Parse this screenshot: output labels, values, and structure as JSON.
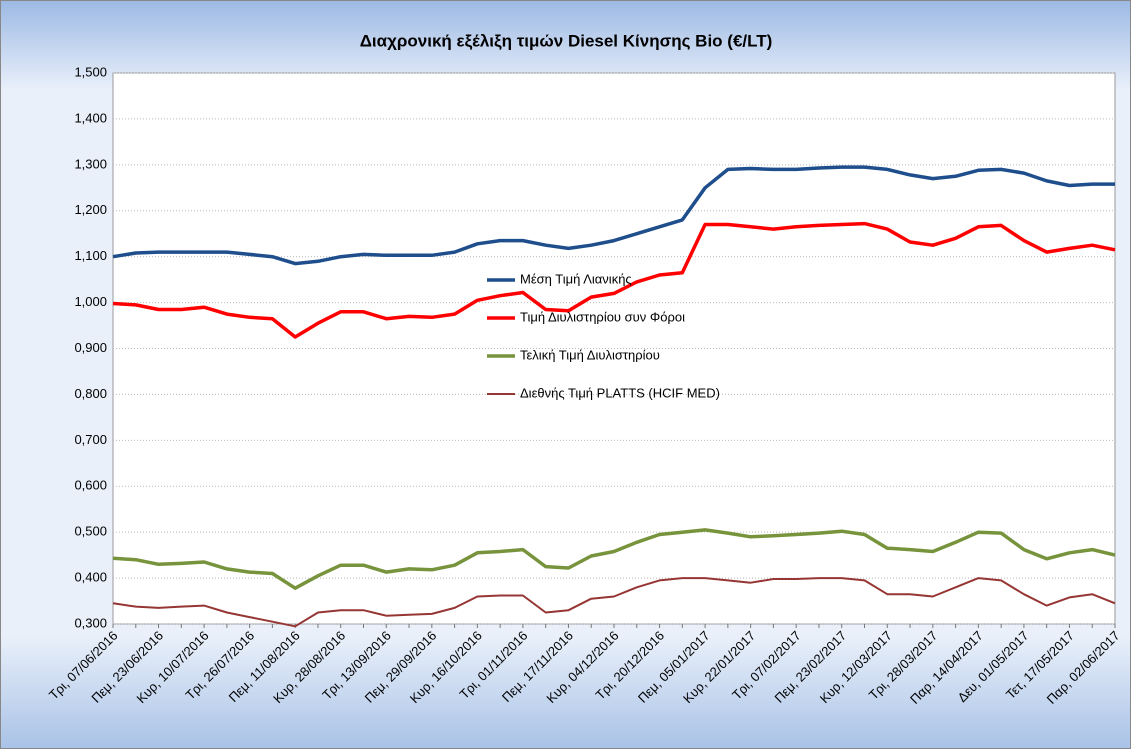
{
  "chart_data": {
    "type": "line",
    "title": "Διαχρονική εξέλιξη τιμών Diesel Κίνησης Bio (€/LT)",
    "categories": [
      "Τρι, 07/06/2016",
      null,
      "Πεμ, 23/06/2016",
      null,
      "Κυρ, 10/07/2016",
      null,
      "Τρι, 26/07/2016",
      null,
      "Πεμ, 11/08/2016",
      null,
      "Κυρ, 28/08/2016",
      null,
      "Τρι, 13/09/2016",
      null,
      "Πεμ, 29/09/2016",
      null,
      "Κυρ, 16/10/2016",
      null,
      "Τρι, 01/11/2016",
      null,
      "Πεμ, 17/11/2016",
      null,
      "Κυρ, 04/12/2016",
      null,
      "Τρι, 20/12/2016",
      null,
      "Πεμ, 05/01/2017",
      null,
      "Κυρ, 22/01/2017",
      null,
      "Τρι, 07/02/2017",
      null,
      "Πεμ, 23/02/2017",
      null,
      "Κυρ, 12/03/2017",
      null,
      "Τρι, 28/03/2017",
      null,
      "Παρ, 14/04/2017",
      null,
      "Δευ, 01/05/2017",
      null,
      "Τετ, 17/05/2017",
      null,
      "Παρ, 02/06/2017"
    ],
    "series": [
      {
        "name": "Μέση Τιμή Λιανικής",
        "color": "#1f4e8c",
        "width": 3.5,
        "values": [
          1.1,
          1.108,
          1.11,
          1.11,
          1.11,
          1.11,
          1.105,
          1.1,
          1.085,
          1.09,
          1.1,
          1.105,
          1.103,
          1.103,
          1.103,
          1.11,
          1.128,
          1.135,
          1.135,
          1.125,
          1.118,
          1.125,
          1.135,
          1.15,
          1.165,
          1.18,
          1.25,
          1.29,
          1.292,
          1.29,
          1.29,
          1.293,
          1.295,
          1.295,
          1.29,
          1.278,
          1.27,
          1.275,
          1.288,
          1.29,
          1.282,
          1.265,
          1.255,
          1.258,
          1.258
        ]
      },
      {
        "name": "Τιμή Διυλιστηρίου συν Φόροι",
        "color": "#ff0000",
        "width": 3.5,
        "values": [
          0.998,
          0.995,
          0.985,
          0.985,
          0.99,
          0.975,
          0.968,
          0.965,
          0.925,
          0.955,
          0.98,
          0.98,
          0.965,
          0.97,
          0.968,
          0.975,
          1.005,
          1.015,
          1.022,
          0.985,
          0.982,
          1.012,
          1.02,
          1.045,
          1.06,
          1.065,
          1.17,
          1.17,
          1.165,
          1.16,
          1.165,
          1.168,
          1.17,
          1.172,
          1.16,
          1.132,
          1.125,
          1.14,
          1.165,
          1.168,
          1.135,
          1.11,
          1.118,
          1.125,
          1.115
        ]
      },
      {
        "name": "Τελική Τιμή Διυλιστηρίου",
        "color": "#77933c",
        "width": 3.5,
        "values": [
          0.443,
          0.44,
          0.43,
          0.432,
          0.435,
          0.42,
          0.413,
          0.41,
          0.378,
          0.405,
          0.428,
          0.428,
          0.413,
          0.42,
          0.418,
          0.428,
          0.455,
          0.458,
          0.462,
          0.425,
          0.422,
          0.448,
          0.458,
          0.478,
          0.495,
          0.5,
          0.505,
          0.498,
          0.49,
          0.492,
          0.495,
          0.498,
          0.502,
          0.495,
          0.465,
          0.462,
          0.458,
          0.478,
          0.5,
          0.498,
          0.462,
          0.442,
          0.455,
          0.462,
          0.45
        ]
      },
      {
        "name": "Διεθνής Τιμή PLATTS (HCIF MED)",
        "color": "#963634",
        "width": 2,
        "values": [
          0.345,
          0.338,
          0.335,
          0.338,
          0.34,
          0.325,
          0.315,
          0.305,
          0.295,
          0.325,
          0.33,
          0.33,
          0.318,
          0.32,
          0.322,
          0.335,
          0.36,
          0.362,
          0.362,
          0.325,
          0.33,
          0.355,
          0.36,
          0.38,
          0.395,
          0.4,
          0.4,
          0.395,
          0.39,
          0.398,
          0.398,
          0.4,
          0.4,
          0.395,
          0.365,
          0.365,
          0.36,
          0.38,
          0.4,
          0.395,
          0.365,
          0.34,
          0.358,
          0.365,
          0.345
        ]
      }
    ],
    "ylim": [
      0.3,
      1.5
    ],
    "yticks": [
      {
        "value": 0.3,
        "label": "0,300"
      },
      {
        "value": 0.4,
        "label": "0,400"
      },
      {
        "value": 0.5,
        "label": "0,500"
      },
      {
        "value": 0.6,
        "label": "0,600"
      },
      {
        "value": 0.7,
        "label": "0,700"
      },
      {
        "value": 0.8,
        "label": "0,800"
      },
      {
        "value": 0.9,
        "label": "0,900"
      },
      {
        "value": 1.0,
        "label": "1,000"
      },
      {
        "value": 1.1,
        "label": "1,100"
      },
      {
        "value": 1.2,
        "label": "1,200"
      },
      {
        "value": 1.3,
        "label": "1,300"
      },
      {
        "value": 1.4,
        "label": "1,400"
      },
      {
        "value": 1.5,
        "label": "1,500"
      }
    ],
    "grid": true
  }
}
